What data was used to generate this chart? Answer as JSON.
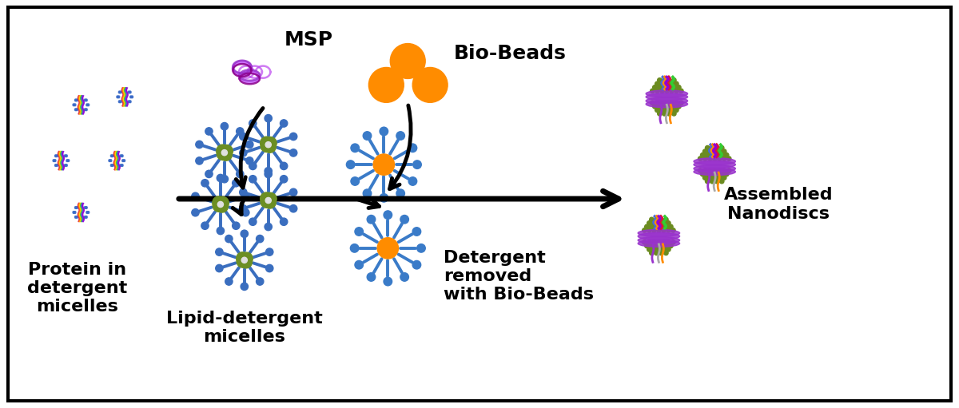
{
  "background_color": "#ffffff",
  "border_color": "#000000",
  "labels": {
    "protein_in_detergent": "Protein in\ndetergent\nmicelles",
    "msp": "MSP",
    "bio_beads": "Bio-Beads",
    "lipid_detergent": "Lipid-detergent\nmicelles",
    "detergent_removed": "Detergent\nremoved\nwith Bio-Beads",
    "assembled": "Assembled\nNanodiscs"
  },
  "colors": {
    "msp_purple": "#9B30FF",
    "msp_dark": "#8B008B",
    "bio_beads_orange": "#FF8C00",
    "lipid_green": "#6B8E23",
    "detergent_blue": "#3A6EBF",
    "spoke_blue": "#3A7BC8",
    "text_black": "#000000",
    "white_center": "#E0E0E0"
  },
  "font_size_large": 18,
  "font_size_labels": 16
}
